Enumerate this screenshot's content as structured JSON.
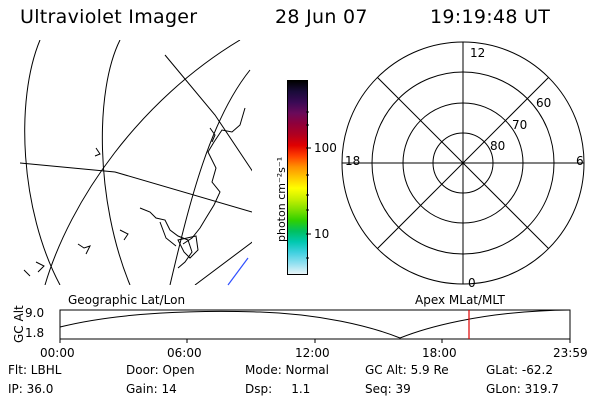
{
  "header": {
    "instrument": "Ultraviolet Imager",
    "date": "28 Jun 07",
    "time": "19:19:48 UT"
  },
  "colorbar": {
    "unit_label": "photon cm⁻²s⁻¹",
    "tick_labels": [
      "100",
      "10"
    ],
    "colors": [
      "#000000",
      "#1a0b3a",
      "#3a0a55",
      "#6a0a5a",
      "#90003a",
      "#b00020",
      "#e00000",
      "#ff4000",
      "#ff9000",
      "#ffc800",
      "#ffff00",
      "#c8f000",
      "#80e000",
      "#30d000",
      "#00c060",
      "#00c8b0",
      "#40d0e0",
      "#90e0f0",
      "#e8f4f8"
    ]
  },
  "polar_plot": {
    "mlt_labels": {
      "top": "12",
      "right": "6",
      "bottom": "0",
      "left": "18"
    },
    "lat_labels": [
      "60",
      "70",
      "80"
    ]
  },
  "timeline": {
    "left_label": "Geographic Lat/Lon",
    "right_label": "Apex MLat/MLT",
    "y_axis_title": "GC Alt",
    "y_ticks": [
      "9.0",
      "1.8"
    ],
    "x_ticks": [
      "00:00",
      "06:00",
      "12:00",
      "18:00",
      "23:59"
    ],
    "current_marker_color": "#e00000"
  },
  "status": {
    "flt": "Flt: LBHL",
    "ip": "IP: 36.0",
    "door": "Door: Open",
    "gain": "Gain: 14",
    "mode": "Mode: Normal",
    "dsp": "Dsp:     1.1",
    "gc_alt": "GC Alt: 5.9 Re",
    "seq": "Seq: 39",
    "glat": "GLat: -62.2",
    "glon": "GLon: 319.7"
  }
}
